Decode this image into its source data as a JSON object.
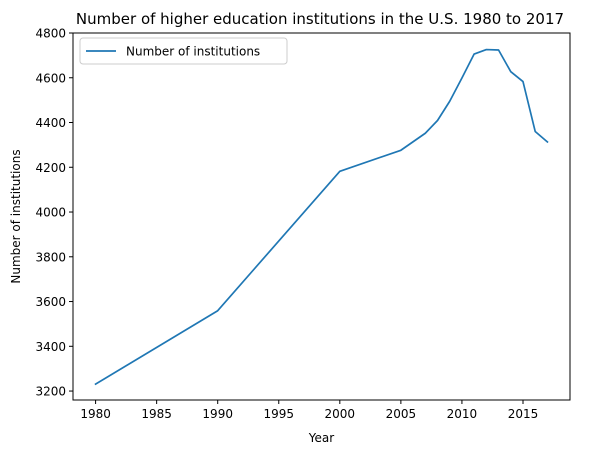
{
  "chart_data": {
    "type": "line",
    "title": "Number of higher education institutions in the U.S. 1980 to 2017",
    "xlabel": "Year",
    "ylabel": "Number of institutions",
    "xlim": [
      1978.15,
      2018.85
    ],
    "ylim": [
      3160,
      4800
    ],
    "xticks": [
      1980,
      1985,
      1990,
      1995,
      2000,
      2005,
      2010,
      2015
    ],
    "yticks": [
      3200,
      3400,
      3600,
      3800,
      4000,
      4200,
      4400,
      4600,
      4800
    ],
    "grid": false,
    "legend_position": "top-left",
    "series": [
      {
        "name": "Number of institutions",
        "color": "#1f77b4",
        "x": [
          1980,
          1990,
          2000,
          2005,
          2007,
          2008,
          2009,
          2010,
          2011,
          2012,
          2013,
          2014,
          2015,
          2016,
          2017
        ],
        "y": [
          3231,
          3559,
          4182,
          4276,
          4352,
          4409,
          4495,
          4599,
          4706,
          4726,
          4724,
          4627,
          4583,
          4360,
          4313
        ]
      }
    ]
  }
}
